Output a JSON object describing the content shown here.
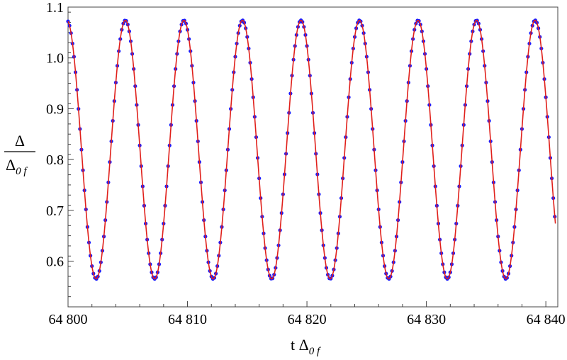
{
  "chart_data": {
    "type": "line",
    "title": "",
    "xlabel": {
      "main": "t Δ",
      "sub": "0 f"
    },
    "ylabel": {
      "numerator": "Δ",
      "denominator_main": "Δ",
      "denominator_sub": "0 f"
    },
    "xlim": [
      64800,
      64841
    ],
    "ylim": [
      0.51,
      1.1
    ],
    "xticks": [
      64800,
      64810,
      64820,
      64830,
      64840
    ],
    "xtick_labels": [
      "64 800",
      "64 810",
      "64 820",
      "64 830",
      "64 840"
    ],
    "yticks": [
      0.6,
      0.7,
      0.8,
      0.9,
      1.0,
      1.1
    ],
    "ytick_labels": [
      "0.6",
      "0.7",
      "0.8",
      "0.9",
      "1.0",
      "1.1"
    ],
    "grid": false,
    "series": [
      {
        "style": "points",
        "color": "#1a1aff",
        "model": {
          "form": "cosine",
          "mean": 0.8195,
          "amplitude": 0.2545,
          "period": 4.9,
          "peak_x": 64799.9,
          "x_start": 64800.0,
          "x_end": 64840.8
        }
      },
      {
        "style": "line",
        "color": "#e0201b",
        "model": {
          "form": "cosine",
          "mean": 0.8195,
          "amplitude": 0.2545,
          "period": 4.9,
          "peak_x": 64799.9,
          "x_start": 64800.0,
          "x_end": 64840.8
        }
      }
    ]
  },
  "colors": {
    "frame": "#444444",
    "points": "#1a1aff",
    "line": "#e0201b"
  }
}
